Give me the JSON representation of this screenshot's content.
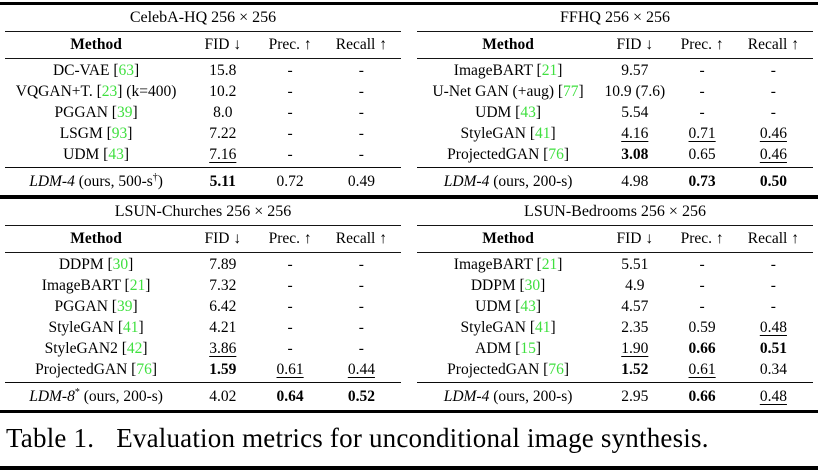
{
  "colors": {
    "citation": "#3fe03f",
    "ink": "#000000",
    "background": "#ffffff"
  },
  "columns": [
    "Method",
    "FID ↓",
    "Prec. ↑",
    "Recall ↑"
  ],
  "caption": {
    "label": "Table 1.",
    "text": "Evaluation metrics for unconditional image synthesis."
  },
  "tables": [
    {
      "title": "CelebA-HQ 256 × 256",
      "rows": [
        {
          "method": [
            {
              "t": "DC-VAE [",
              "s": ""
            },
            {
              "t": "63",
              "s": "c"
            },
            {
              "t": "]",
              "s": ""
            }
          ],
          "fid": {
            "t": "15.8",
            "s": ""
          },
          "prec": {
            "t": "-",
            "s": ""
          },
          "recall": {
            "t": "-",
            "s": ""
          }
        },
        {
          "method": [
            {
              "t": "VQGAN+T. [",
              "s": ""
            },
            {
              "t": "23",
              "s": "c"
            },
            {
              "t": "] (k=400)",
              "s": ""
            }
          ],
          "fid": {
            "t": "10.2",
            "s": ""
          },
          "prec": {
            "t": "-",
            "s": ""
          },
          "recall": {
            "t": "-",
            "s": ""
          }
        },
        {
          "method": [
            {
              "t": "PGGAN [",
              "s": ""
            },
            {
              "t": "39",
              "s": "c"
            },
            {
              "t": "]",
              "s": ""
            }
          ],
          "fid": {
            "t": "8.0",
            "s": ""
          },
          "prec": {
            "t": "-",
            "s": ""
          },
          "recall": {
            "t": "-",
            "s": ""
          }
        },
        {
          "method": [
            {
              "t": "LSGM [",
              "s": ""
            },
            {
              "t": "93",
              "s": "c"
            },
            {
              "t": "]",
              "s": ""
            }
          ],
          "fid": {
            "t": "7.22",
            "s": ""
          },
          "prec": {
            "t": "-",
            "s": ""
          },
          "recall": {
            "t": "-",
            "s": ""
          }
        },
        {
          "method": [
            {
              "t": "UDM [",
              "s": ""
            },
            {
              "t": "43",
              "s": "c"
            },
            {
              "t": "]",
              "s": ""
            }
          ],
          "fid": {
            "t": "7.16",
            "s": "u"
          },
          "prec": {
            "t": "-",
            "s": ""
          },
          "recall": {
            "t": "-",
            "s": ""
          }
        }
      ],
      "summary": {
        "method": [
          {
            "t": "LDM-4",
            "s": "i"
          },
          {
            "t": " (ours, 500-s",
            "s": ""
          },
          {
            "t": "†",
            "s": "sup"
          },
          {
            "t": ")",
            "s": ""
          }
        ],
        "fid": {
          "t": "5.11",
          "s": "b"
        },
        "prec": {
          "t": "0.72",
          "s": ""
        },
        "recall": {
          "t": "0.49",
          "s": ""
        }
      }
    },
    {
      "title": "FFHQ 256 × 256",
      "rows": [
        {
          "method": [
            {
              "t": "ImageBART [",
              "s": ""
            },
            {
              "t": "21",
              "s": "c"
            },
            {
              "t": "]",
              "s": ""
            }
          ],
          "fid": {
            "t": "9.57",
            "s": ""
          },
          "prec": {
            "t": "-",
            "s": ""
          },
          "recall": {
            "t": "-",
            "s": ""
          }
        },
        {
          "method": [
            {
              "t": "U-Net GAN (+aug) [",
              "s": ""
            },
            {
              "t": "77",
              "s": "c"
            },
            {
              "t": "]",
              "s": ""
            }
          ],
          "fid": {
            "t": "10.9 (7.6)",
            "s": ""
          },
          "prec": {
            "t": "-",
            "s": ""
          },
          "recall": {
            "t": "-",
            "s": ""
          }
        },
        {
          "method": [
            {
              "t": "UDM [",
              "s": ""
            },
            {
              "t": "43",
              "s": "c"
            },
            {
              "t": "]",
              "s": ""
            }
          ],
          "fid": {
            "t": "5.54",
            "s": ""
          },
          "prec": {
            "t": "-",
            "s": ""
          },
          "recall": {
            "t": "-",
            "s": ""
          }
        },
        {
          "method": [
            {
              "t": "StyleGAN [",
              "s": ""
            },
            {
              "t": "41",
              "s": "c"
            },
            {
              "t": "]",
              "s": ""
            }
          ],
          "fid": {
            "t": "4.16",
            "s": "u"
          },
          "prec": {
            "t": "0.71",
            "s": "u"
          },
          "recall": {
            "t": "0.46",
            "s": "u"
          }
        },
        {
          "method": [
            {
              "t": "ProjectedGAN [",
              "s": ""
            },
            {
              "t": "76",
              "s": "c"
            },
            {
              "t": "]",
              "s": ""
            }
          ],
          "fid": {
            "t": "3.08",
            "s": "b"
          },
          "prec": {
            "t": "0.65",
            "s": ""
          },
          "recall": {
            "t": "0.46",
            "s": "u"
          }
        }
      ],
      "summary": {
        "method": [
          {
            "t": "LDM-4",
            "s": "i"
          },
          {
            "t": " (ours, 200-s)",
            "s": ""
          }
        ],
        "fid": {
          "t": "4.98",
          "s": ""
        },
        "prec": {
          "t": "0.73",
          "s": "b"
        },
        "recall": {
          "t": "0.50",
          "s": "b"
        }
      }
    },
    {
      "title": "LSUN-Churches 256 × 256",
      "rows": [
        {
          "method": [
            {
              "t": "DDPM [",
              "s": ""
            },
            {
              "t": "30",
              "s": "c"
            },
            {
              "t": "]",
              "s": ""
            }
          ],
          "fid": {
            "t": "7.89",
            "s": ""
          },
          "prec": {
            "t": "-",
            "s": ""
          },
          "recall": {
            "t": "-",
            "s": ""
          }
        },
        {
          "method": [
            {
              "t": "ImageBART [",
              "s": ""
            },
            {
              "t": "21",
              "s": "c"
            },
            {
              "t": "]",
              "s": ""
            }
          ],
          "fid": {
            "t": "7.32",
            "s": ""
          },
          "prec": {
            "t": "-",
            "s": ""
          },
          "recall": {
            "t": "-",
            "s": ""
          }
        },
        {
          "method": [
            {
              "t": "PGGAN [",
              "s": ""
            },
            {
              "t": "39",
              "s": "c"
            },
            {
              "t": "]",
              "s": ""
            }
          ],
          "fid": {
            "t": "6.42",
            "s": ""
          },
          "prec": {
            "t": "-",
            "s": ""
          },
          "recall": {
            "t": "-",
            "s": ""
          }
        },
        {
          "method": [
            {
              "t": "StyleGAN [",
              "s": ""
            },
            {
              "t": "41",
              "s": "c"
            },
            {
              "t": "]",
              "s": ""
            }
          ],
          "fid": {
            "t": "4.21",
            "s": ""
          },
          "prec": {
            "t": "-",
            "s": ""
          },
          "recall": {
            "t": "-",
            "s": ""
          }
        },
        {
          "method": [
            {
              "t": "StyleGAN2 [",
              "s": ""
            },
            {
              "t": "42",
              "s": "c"
            },
            {
              "t": "]",
              "s": ""
            }
          ],
          "fid": {
            "t": "3.86",
            "s": "u"
          },
          "prec": {
            "t": "-",
            "s": ""
          },
          "recall": {
            "t": "-",
            "s": ""
          }
        },
        {
          "method": [
            {
              "t": "ProjectedGAN [",
              "s": ""
            },
            {
              "t": "76",
              "s": "c"
            },
            {
              "t": "]",
              "s": ""
            }
          ],
          "fid": {
            "t": "1.59",
            "s": "b"
          },
          "prec": {
            "t": "0.61",
            "s": "u"
          },
          "recall": {
            "t": "0.44",
            "s": "u"
          }
        }
      ],
      "summary": {
        "method": [
          {
            "t": "LDM-8",
            "s": "i"
          },
          {
            "t": "*",
            "s": "sup"
          },
          {
            "t": " (ours, 200-s)",
            "s": ""
          }
        ],
        "fid": {
          "t": "4.02",
          "s": ""
        },
        "prec": {
          "t": "0.64",
          "s": "b"
        },
        "recall": {
          "t": "0.52",
          "s": "b"
        }
      }
    },
    {
      "title": "LSUN-Bedrooms 256 × 256",
      "rows": [
        {
          "method": [
            {
              "t": "ImageBART [",
              "s": ""
            },
            {
              "t": "21",
              "s": "c"
            },
            {
              "t": "]",
              "s": ""
            }
          ],
          "fid": {
            "t": "5.51",
            "s": ""
          },
          "prec": {
            "t": "-",
            "s": ""
          },
          "recall": {
            "t": "-",
            "s": ""
          }
        },
        {
          "method": [
            {
              "t": "DDPM [",
              "s": ""
            },
            {
              "t": "30",
              "s": "c"
            },
            {
              "t": "]",
              "s": ""
            }
          ],
          "fid": {
            "t": "4.9",
            "s": ""
          },
          "prec": {
            "t": "-",
            "s": ""
          },
          "recall": {
            "t": "-",
            "s": ""
          }
        },
        {
          "method": [
            {
              "t": "UDM [",
              "s": ""
            },
            {
              "t": "43",
              "s": "c"
            },
            {
              "t": "]",
              "s": ""
            }
          ],
          "fid": {
            "t": "4.57",
            "s": ""
          },
          "prec": {
            "t": "-",
            "s": ""
          },
          "recall": {
            "t": "-",
            "s": ""
          }
        },
        {
          "method": [
            {
              "t": "StyleGAN [",
              "s": ""
            },
            {
              "t": "41",
              "s": "c"
            },
            {
              "t": "]",
              "s": ""
            }
          ],
          "fid": {
            "t": "2.35",
            "s": ""
          },
          "prec": {
            "t": "0.59",
            "s": ""
          },
          "recall": {
            "t": "0.48",
            "s": "u"
          }
        },
        {
          "method": [
            {
              "t": "ADM [",
              "s": ""
            },
            {
              "t": "15",
              "s": "c"
            },
            {
              "t": "]",
              "s": ""
            }
          ],
          "fid": {
            "t": "1.90",
            "s": "u"
          },
          "prec": {
            "t": "0.66",
            "s": "b"
          },
          "recall": {
            "t": "0.51",
            "s": "b"
          }
        },
        {
          "method": [
            {
              "t": "ProjectedGAN [",
              "s": ""
            },
            {
              "t": "76",
              "s": "c"
            },
            {
              "t": "]",
              "s": ""
            }
          ],
          "fid": {
            "t": "1.52",
            "s": "b"
          },
          "prec": {
            "t": "0.61",
            "s": "u"
          },
          "recall": {
            "t": "0.34",
            "s": ""
          }
        }
      ],
      "summary": {
        "method": [
          {
            "t": "LDM-4",
            "s": "i"
          },
          {
            "t": " (ours, 200-s)",
            "s": ""
          }
        ],
        "fid": {
          "t": "2.95",
          "s": ""
        },
        "prec": {
          "t": "0.66",
          "s": "b"
        },
        "recall": {
          "t": "0.48",
          "s": "u"
        }
      }
    }
  ]
}
